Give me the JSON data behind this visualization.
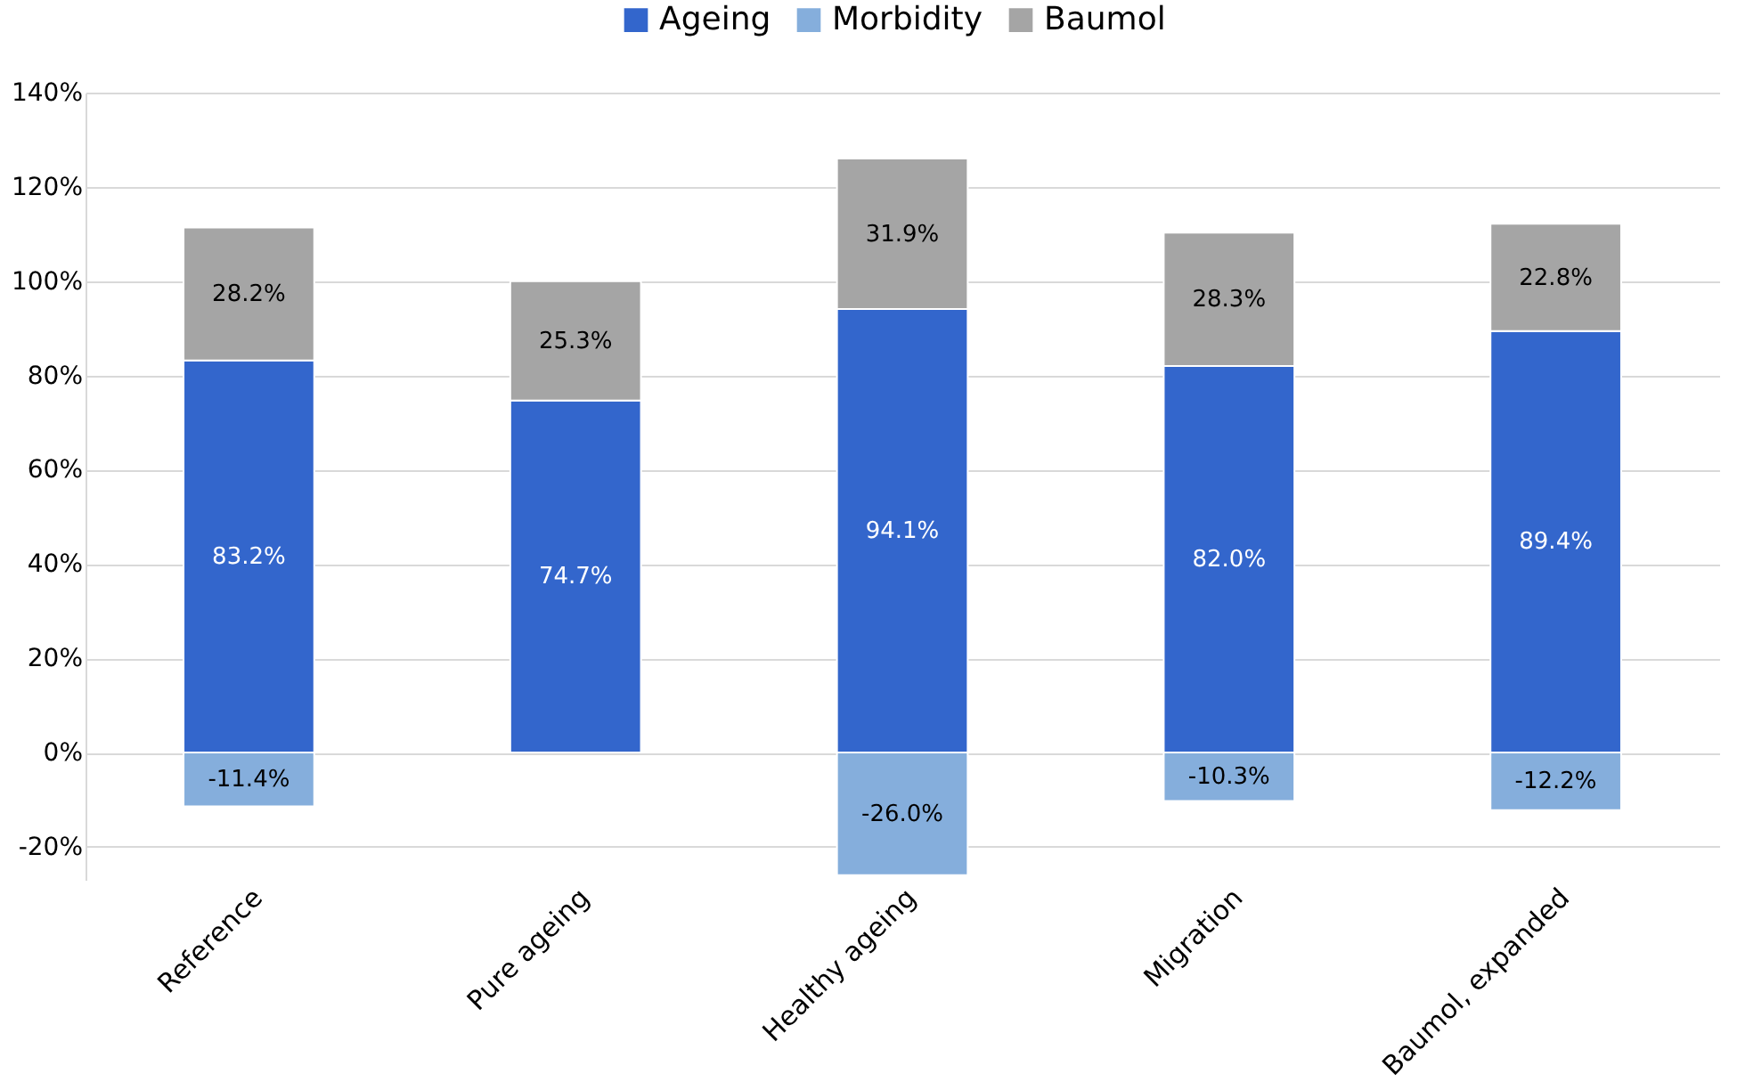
{
  "chart_data": {
    "type": "bar",
    "stacked": true,
    "categories": [
      "Reference",
      "Pure ageing",
      "Healthy ageing",
      "Migration",
      "Baumol, expanded"
    ],
    "series": [
      {
        "name": "Ageing",
        "color": "#3366cc",
        "values": [
          83.2,
          74.7,
          94.1,
          82.0,
          89.4
        ],
        "value_labels": [
          "83.2%",
          "74.7%",
          "94.1%",
          "82.0%",
          "89.4%"
        ]
      },
      {
        "name": "Morbidity",
        "color": "#85aedc",
        "values": [
          -11.4,
          null,
          -26.0,
          -10.3,
          -12.2
        ],
        "value_labels": [
          "-11.4%",
          null,
          "-26.0%",
          "-10.3%",
          "-12.2%"
        ]
      },
      {
        "name": "Baumol",
        "color": "#a5a5a5",
        "values": [
          28.2,
          25.3,
          31.9,
          28.3,
          22.8
        ],
        "value_labels": [
          "28.2%",
          "25.3%",
          "31.9%",
          "28.3%",
          "22.8%"
        ]
      }
    ],
    "ylim": [
      -27,
      140
    ],
    "yticks": [
      {
        "value": -20,
        "label": "-20%"
      },
      {
        "value": 0,
        "label": "0%"
      },
      {
        "value": 20,
        "label": "20%"
      },
      {
        "value": 40,
        "label": "40%"
      },
      {
        "value": 60,
        "label": "60%"
      },
      {
        "value": 80,
        "label": "80%"
      },
      {
        "value": 100,
        "label": "100%"
      },
      {
        "value": 120,
        "label": "120%"
      },
      {
        "value": 140,
        "label": "140%"
      }
    ],
    "grid": "y",
    "legend": "top"
  }
}
